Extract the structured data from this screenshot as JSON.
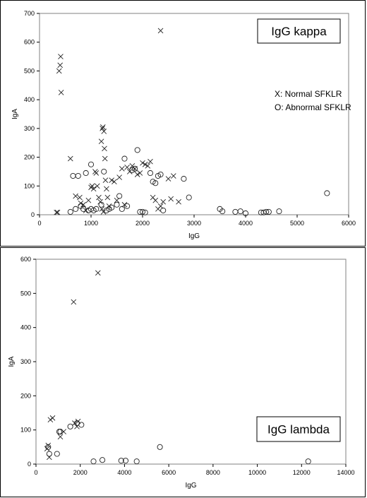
{
  "chart_data": [
    {
      "type": "scatter",
      "title": "IgG kappa",
      "xlabel": "IgG",
      "ylabel": "IgA",
      "xlim": [
        0,
        6000
      ],
      "ylim": [
        0,
        700
      ],
      "xticks": [
        "0",
        "1000",
        "2000",
        "3000",
        "4000",
        "5000",
        "6000"
      ],
      "yticks": [
        "0",
        "100",
        "200",
        "300",
        "400",
        "500",
        "600",
        "700"
      ],
      "grid": false,
      "legend": [
        "X: Normal SFKLR",
        "O: Abnormal SFKLR"
      ],
      "legend_position": "middle-right",
      "series": [
        {
          "marker": "x",
          "points": [
            [
              330,
              8
            ],
            [
              350,
              8
            ],
            [
              380,
              500
            ],
            [
              400,
              520
            ],
            [
              410,
              550
            ],
            [
              420,
              425
            ],
            [
              600,
              195
            ],
            [
              700,
              65
            ],
            [
              780,
              60
            ],
            [
              800,
              40
            ],
            [
              850,
              35
            ],
            [
              900,
              15
            ],
            [
              950,
              50
            ],
            [
              1000,
              95
            ],
            [
              1020,
              100
            ],
            [
              1050,
              90
            ],
            [
              1080,
              150
            ],
            [
              1100,
              145
            ],
            [
              1120,
              100
            ],
            [
              1150,
              60
            ],
            [
              1180,
              45
            ],
            [
              1200,
              255
            ],
            [
              1210,
              20
            ],
            [
              1220,
              300
            ],
            [
              1230,
              305
            ],
            [
              1240,
              10
            ],
            [
              1250,
              290
            ],
            [
              1260,
              230
            ],
            [
              1270,
              195
            ],
            [
              1280,
              120
            ],
            [
              1300,
              90
            ],
            [
              1320,
              60
            ],
            [
              1350,
              30
            ],
            [
              1400,
              120
            ],
            [
              1450,
              115
            ],
            [
              1500,
              50
            ],
            [
              1550,
              130
            ],
            [
              1600,
              160
            ],
            [
              1650,
              35
            ],
            [
              1700,
              165
            ],
            [
              1750,
              150
            ],
            [
              1800,
              170
            ],
            [
              1850,
              160
            ],
            [
              1900,
              140
            ],
            [
              1950,
              145
            ],
            [
              2000,
              180
            ],
            [
              2050,
              175
            ],
            [
              2100,
              170
            ],
            [
              2150,
              185
            ],
            [
              2200,
              60
            ],
            [
              2250,
              50
            ],
            [
              2300,
              20
            ],
            [
              2350,
              640
            ],
            [
              2350,
              30
            ],
            [
              2400,
              45
            ],
            [
              2500,
              125
            ],
            [
              2550,
              55
            ],
            [
              2600,
              135
            ],
            [
              2700,
              45
            ]
          ]
        },
        {
          "marker": "o",
          "points": [
            [
              600,
              10
            ],
            [
              650,
              135
            ],
            [
              700,
              20
            ],
            [
              750,
              135
            ],
            [
              800,
              30
            ],
            [
              850,
              20
            ],
            [
              900,
              145
            ],
            [
              950,
              15
            ],
            [
              1000,
              20
            ],
            [
              1000,
              175
            ],
            [
              1050,
              15
            ],
            [
              1100,
              20
            ],
            [
              1200,
              35
            ],
            [
              1250,
              150
            ],
            [
              1300,
              15
            ],
            [
              1350,
              20
            ],
            [
              1400,
              25
            ],
            [
              1500,
              35
            ],
            [
              1550,
              65
            ],
            [
              1600,
              20
            ],
            [
              1650,
              195
            ],
            [
              1700,
              30
            ],
            [
              1800,
              155
            ],
            [
              1850,
              160
            ],
            [
              1900,
              225
            ],
            [
              1950,
              10
            ],
            [
              2000,
              10
            ],
            [
              2050,
              8
            ],
            [
              2150,
              145
            ],
            [
              2200,
              115
            ],
            [
              2250,
              110
            ],
            [
              2300,
              135
            ],
            [
              2350,
              140
            ],
            [
              2400,
              15
            ],
            [
              2800,
              125
            ],
            [
              2900,
              60
            ],
            [
              3500,
              20
            ],
            [
              3550,
              12
            ],
            [
              3800,
              10
            ],
            [
              3900,
              12
            ],
            [
              4000,
              5
            ],
            [
              4300,
              8
            ],
            [
              4350,
              8
            ],
            [
              4400,
              10
            ],
            [
              4450,
              10
            ],
            [
              4650,
              12
            ],
            [
              5580,
              75
            ]
          ]
        }
      ]
    },
    {
      "type": "scatter",
      "title": "IgG lambda",
      "xlabel": "IgG",
      "ylabel": "IgA",
      "xlim": [
        0,
        14000
      ],
      "ylim": [
        0,
        600
      ],
      "xticks": [
        "0",
        "2000",
        "4000",
        "6000",
        "8000",
        "10000",
        "12000",
        "14000"
      ],
      "yticks": [
        "0",
        "100",
        "200",
        "300",
        "400",
        "500",
        "600"
      ],
      "grid": false,
      "legend_position": "none",
      "series": [
        {
          "marker": "x",
          "points": [
            [
              500,
              45
            ],
            [
              550,
              55
            ],
            [
              600,
              20
            ],
            [
              650,
              130
            ],
            [
              750,
              135
            ],
            [
              1100,
              80
            ],
            [
              1250,
              95
            ],
            [
              1700,
              475
            ],
            [
              1750,
              120
            ],
            [
              1850,
              110
            ],
            [
              1900,
              125
            ],
            [
              2800,
              560
            ]
          ]
        },
        {
          "marker": "o",
          "points": [
            [
              550,
              50
            ],
            [
              600,
              30
            ],
            [
              950,
              30
            ],
            [
              1050,
              95
            ],
            [
              1100,
              95
            ],
            [
              1550,
              110
            ],
            [
              1850,
              120
            ],
            [
              2050,
              115
            ],
            [
              2600,
              8
            ],
            [
              3000,
              12
            ],
            [
              3850,
              10
            ],
            [
              4050,
              10
            ],
            [
              4550,
              8
            ],
            [
              5600,
              50
            ],
            [
              12300,
              8
            ]
          ]
        }
      ]
    }
  ]
}
